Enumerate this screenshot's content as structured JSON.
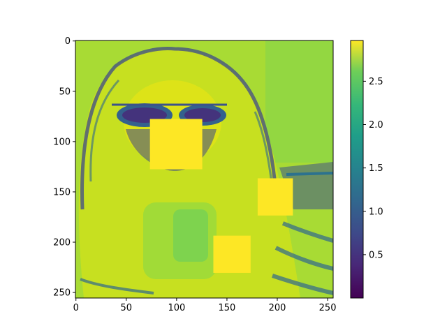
{
  "chart_data": {
    "type": "heatmap",
    "title": "",
    "xlabel": "",
    "ylabel": "",
    "image_size": [
      256,
      256
    ],
    "xlim": [
      0,
      255
    ],
    "ylim": [
      255,
      0
    ],
    "x_ticks": [
      0,
      50,
      100,
      150,
      200,
      250
    ],
    "y_ticks": [
      0,
      50,
      100,
      150,
      200,
      250
    ],
    "x_tick_labels": [
      "0",
      "50",
      "100",
      "150",
      "200",
      "250"
    ],
    "y_tick_labels": [
      "0",
      "50",
      "100",
      "150",
      "200",
      "250"
    ],
    "colormap": "viridis",
    "colorbar": {
      "range": [
        0.0,
        2.97
      ],
      "ticks": [
        0.5,
        1.0,
        1.5,
        2.0,
        2.5
      ],
      "tick_labels": [
        "0.5",
        "1.0",
        "1.5",
        "2.0",
        "2.5"
      ]
    },
    "occlusion_patches": [
      {
        "x": [
          74,
          126
        ],
        "y": [
          78,
          128
        ],
        "value": 2.97
      },
      {
        "x": [
          181,
          216
        ],
        "y": [
          137,
          174
        ],
        "value": 2.97
      },
      {
        "x": [
          137,
          174
        ],
        "y": [
          194,
          231
        ],
        "value": 2.97
      }
    ],
    "description": "grayscale-derived intensity map of a person with long hair and glasses, with three constant-value occlusion squares"
  }
}
